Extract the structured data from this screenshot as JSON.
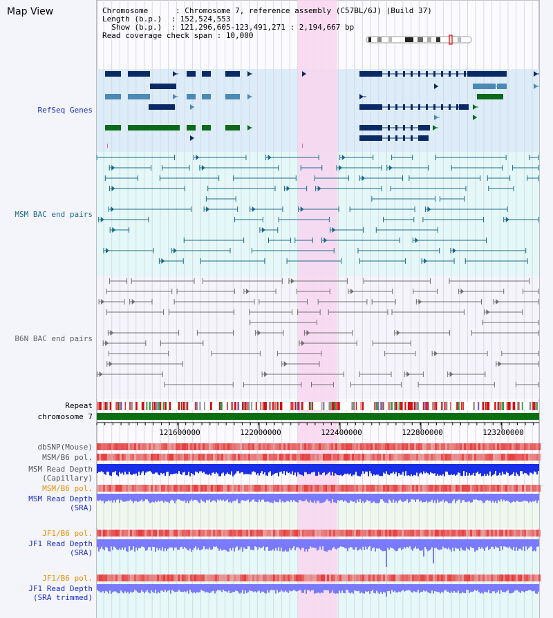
{
  "header": {
    "title": "Map View",
    "chromosome_label": "Chromosome      : ",
    "chromosome_value": "Chromosome 7, reference assembly (C57BL/6J) (Build 37)",
    "length_label": "Length (b.p.)  : ",
    "length_value": "152,524,553",
    "show_label": "  Show (b.p.)  : ",
    "show_value": "121,296,605-123,491,271 : 2,194,667 bp",
    "span_label": "Read coverage check span : ",
    "span_value": "10,000"
  },
  "tracks": {
    "refseq": "RefSeq Genes",
    "msm_bac": "MSM BAC end pairs",
    "b6n_bac": "B6N BAC end pairs",
    "repeat": "Repeat",
    "chromosome": "chromosome 7",
    "dbsnp": "dbSNP(Mouse)",
    "msm_b6_pol": "MSM/B6 pol.",
    "msm_depth_cap_1": "MSM Read Depth",
    "msm_depth_cap_2": "(Capillary)",
    "msm_b6_pol2": "MSM/B6 pol.",
    "msm_depth_sra_1": "MSM Read Depth",
    "msm_depth_sra_2": "(SRA)",
    "jf1_b6_pol": "JF1/B6 pol.",
    "jf1_depth_sra_1": "JF1 Read Depth",
    "jf1_depth_sra_2": "(SRA)",
    "jf1_b6_pol2": "JF1/B6 pol.",
    "jf1_depth_trim_1": "JF1 Read Depth",
    "jf1_depth_trim_2": "(SRA trimmed)"
  },
  "axis": {
    "ticks": [
      "121600000",
      "122000000",
      "122400000",
      "122800000",
      "123200000"
    ]
  },
  "colors": {
    "highlight": "#f8d6f0",
    "refseq_bg": "#dcecf8",
    "msm_bg": "#e4f8f8",
    "b6n_bg": "#f4f4fa",
    "gene_dark": "#0a2a66",
    "gene_mid": "#4a8ab4",
    "gene_green": "#0a6a1a",
    "msm_line": "#1a6a8a",
    "b6n_line": "#707070",
    "chrom_bar": "#0b6e11",
    "depth_dark": "#1a2ee8",
    "depth_light": "#7a7aff"
  }
}
